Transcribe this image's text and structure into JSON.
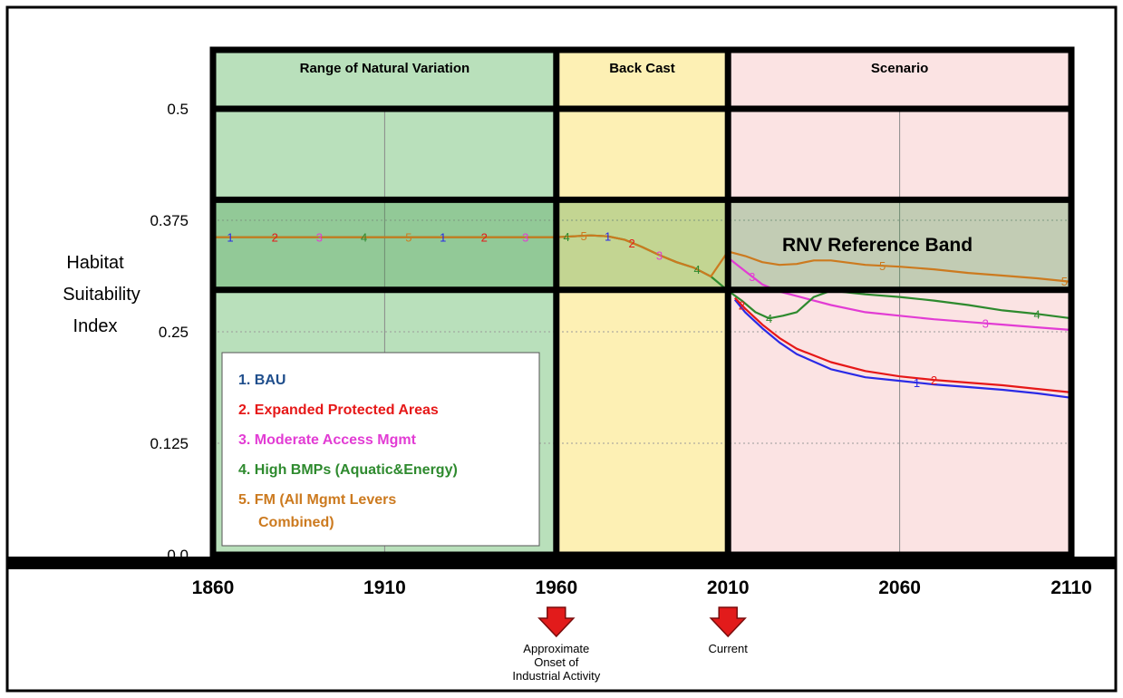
{
  "chart_data": {
    "type": "line",
    "ylabel": "Habitat Suitability Index",
    "yticks": [
      "0.0",
      "0.125",
      "0.25",
      "0.375",
      "0.5"
    ],
    "ylim": [
      0,
      0.5
    ],
    "xticks": [
      "1860",
      "1910",
      "1960",
      "2010",
      "2060",
      "2110"
    ],
    "xlim": [
      1860,
      2110
    ],
    "periods": [
      {
        "label": "Range of Natural Variation",
        "start": 1860,
        "end": 1960,
        "color": "#b9e0bb"
      },
      {
        "label": "Back Cast",
        "start": 1960,
        "end": 2010,
        "color": "#fdf0b4"
      },
      {
        "label": "Scenario",
        "start": 2010,
        "end": 2110,
        "color": "#fbe3e3"
      }
    ],
    "reference_band": {
      "label": "RNV Reference Band",
      "low": 0.297,
      "high": 0.398
    },
    "series": [
      {
        "name": "1. BAU",
        "marker": "1",
        "color": "#2a2ae6",
        "x": [
          2012,
          2015,
          2020,
          2025,
          2030,
          2040,
          2050,
          2060,
          2070,
          2080,
          2090,
          2100,
          2110
        ],
        "y": [
          0.286,
          0.272,
          0.254,
          0.238,
          0.225,
          0.208,
          0.199,
          0.195,
          0.191,
          0.188,
          0.185,
          0.181,
          0.176
        ]
      },
      {
        "name": "2. Expanded Protected Areas",
        "marker": "2",
        "color": "#e61818",
        "x": [
          2012,
          2015,
          2020,
          2025,
          2030,
          2040,
          2050,
          2060,
          2070,
          2080,
          2090,
          2100,
          2110
        ],
        "y": [
          0.288,
          0.276,
          0.258,
          0.243,
          0.231,
          0.216,
          0.206,
          0.2,
          0.196,
          0.193,
          0.19,
          0.186,
          0.182
        ]
      },
      {
        "name": "3. Moderate Access Mgmt",
        "marker": "3",
        "color": "#e23cd4",
        "x": [
          2010,
          2015,
          2020,
          2025,
          2030,
          2040,
          2050,
          2060,
          2070,
          2080,
          2090,
          2100,
          2110
        ],
        "y": [
          0.333,
          0.318,
          0.303,
          0.295,
          0.29,
          0.28,
          0.272,
          0.268,
          0.264,
          0.261,
          0.258,
          0.255,
          0.252
        ]
      },
      {
        "name": "4. High BMPs (Aquatic&Energy)",
        "marker": "4",
        "color": "#2e8a2e",
        "x": [
          1860,
          1880,
          1900,
          1920,
          1940,
          1960,
          1965,
          1970,
          1975,
          1980,
          1985,
          1990,
          1995,
          2000,
          2005,
          2010,
          2014,
          2018,
          2022,
          2026,
          2030,
          2035,
          2040,
          2050,
          2060,
          2070,
          2080,
          2090,
          2100,
          2110
        ],
        "y": [
          0.356,
          0.356,
          0.356,
          0.356,
          0.356,
          0.356,
          0.357,
          0.358,
          0.357,
          0.353,
          0.345,
          0.336,
          0.328,
          0.322,
          0.312,
          0.296,
          0.285,
          0.272,
          0.265,
          0.268,
          0.272,
          0.289,
          0.296,
          0.292,
          0.289,
          0.285,
          0.28,
          0.274,
          0.27,
          0.265
        ]
      },
      {
        "name": "5. FM (All Mgmt Levers Combined)",
        "marker": "5",
        "color": "#cc7a1f",
        "x": [
          1860,
          1880,
          1900,
          1920,
          1940,
          1960,
          1965,
          1970,
          1975,
          1980,
          1985,
          1990,
          1995,
          2000,
          2005,
          2010,
          2015,
          2020,
          2025,
          2030,
          2035,
          2040,
          2050,
          2060,
          2070,
          2080,
          2090,
          2100,
          2110
        ],
        "y": [
          0.356,
          0.356,
          0.356,
          0.356,
          0.356,
          0.356,
          0.357,
          0.358,
          0.357,
          0.353,
          0.345,
          0.336,
          0.328,
          0.322,
          0.312,
          0.34,
          0.335,
          0.328,
          0.325,
          0.326,
          0.33,
          0.33,
          0.325,
          0.323,
          0.32,
          0.316,
          0.313,
          0.31,
          0.306
        ]
      }
    ],
    "legend": {
      "placement": "lower-left",
      "entries": [
        {
          "lines": [
            "1. BAU"
          ],
          "color": "#1f4e8c"
        },
        {
          "lines": [
            "2. Expanded Protected Areas"
          ],
          "color": "#e61818"
        },
        {
          "lines": [
            "3. Moderate Access Mgmt"
          ],
          "color": "#e23cd4"
        },
        {
          "lines": [
            "4. High BMPs (Aquatic&Energy)"
          ],
          "color": "#2e8a2e"
        },
        {
          "lines": [
            "5. FM (All Mgmt Levers",
            "Combined)"
          ],
          "color": "#cc7a1f"
        }
      ]
    },
    "annotations": [
      {
        "year": 1960,
        "lines": [
          "Approximate",
          "Onset of",
          "Industrial Activity"
        ]
      },
      {
        "year": 2010,
        "lines": [
          "Current"
        ]
      }
    ],
    "grid": true
  }
}
